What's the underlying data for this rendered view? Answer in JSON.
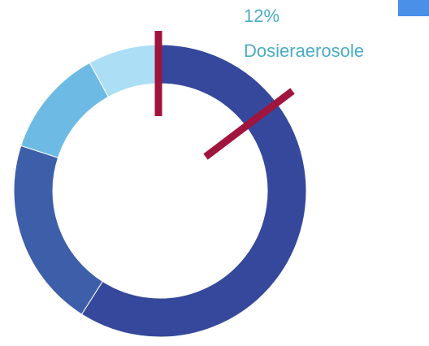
{
  "chart_data": {
    "type": "donut",
    "categories": [
      null,
      null,
      "Dosieraerosole",
      null
    ],
    "values": [
      59,
      21,
      12,
      8
    ],
    "value_labels": [
      null,
      null,
      "12%",
      null
    ],
    "colors": [
      "#35489c",
      "#3d5faa",
      "#6dbbe4",
      "#acdff6"
    ]
  }
}
